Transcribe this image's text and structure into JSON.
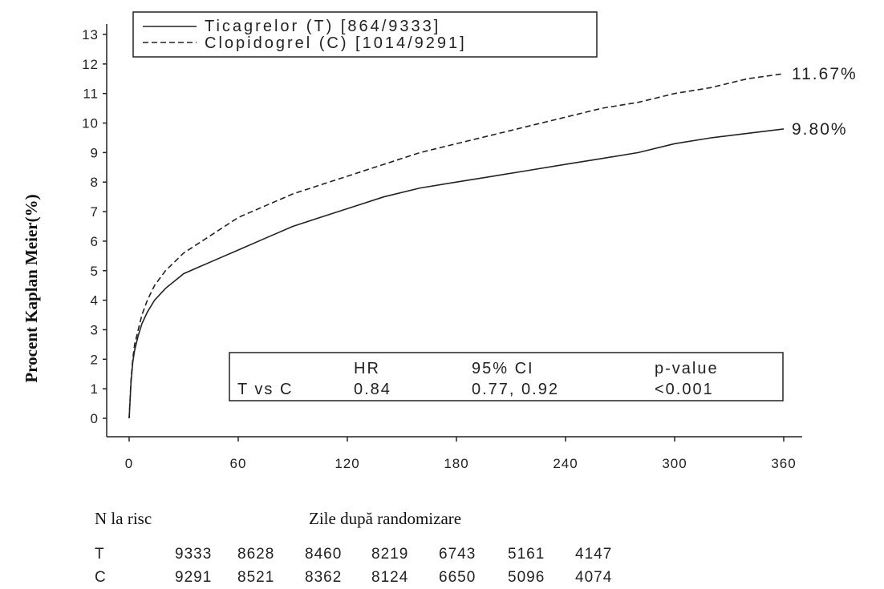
{
  "chart_data": {
    "type": "line",
    "xlabel": "Zile după randomizare",
    "ylabel": "Procent Kaplan Meier(%)",
    "xlim": [
      0,
      360
    ],
    "ylim": [
      0,
      13
    ],
    "x_ticks": [
      0,
      60,
      120,
      180,
      240,
      300,
      360
    ],
    "y_ticks": [
      0,
      1,
      2,
      3,
      4,
      5,
      6,
      7,
      8,
      9,
      10,
      11,
      12,
      13
    ],
    "grid": false,
    "legend_position": "top-left",
    "series": [
      {
        "name": "Ticagrelor (T) [864/9333]",
        "style": "solid",
        "end_label": "9.80%",
        "x": [
          0,
          1,
          2,
          3,
          5,
          7,
          10,
          14,
          20,
          30,
          45,
          60,
          75,
          90,
          105,
          120,
          140,
          160,
          180,
          200,
          220,
          240,
          260,
          280,
          300,
          320,
          340,
          360
        ],
        "y": [
          0,
          1.2,
          1.9,
          2.3,
          2.8,
          3.2,
          3.6,
          4.0,
          4.4,
          4.9,
          5.3,
          5.7,
          6.1,
          6.5,
          6.8,
          7.1,
          7.5,
          7.8,
          8.0,
          8.2,
          8.4,
          8.6,
          8.8,
          9.0,
          9.3,
          9.5,
          9.65,
          9.8
        ]
      },
      {
        "name": "Clopidogrel (C) [1014/9291]",
        "style": "dashed",
        "end_label": "11.67%",
        "x": [
          0,
          1,
          2,
          3,
          5,
          7,
          10,
          14,
          20,
          30,
          45,
          60,
          75,
          90,
          105,
          120,
          140,
          160,
          180,
          200,
          220,
          240,
          260,
          280,
          300,
          320,
          340,
          360
        ],
        "y": [
          0,
          1.3,
          2.0,
          2.5,
          3.0,
          3.5,
          4.0,
          4.5,
          5.0,
          5.6,
          6.2,
          6.8,
          7.2,
          7.6,
          7.9,
          8.2,
          8.6,
          9.0,
          9.3,
          9.6,
          9.9,
          10.2,
          10.5,
          10.7,
          11.0,
          11.2,
          11.5,
          11.67
        ]
      }
    ],
    "stats_table": {
      "row_label": "T vs C",
      "headers": [
        "HR",
        "95% CI",
        "p-value"
      ],
      "values": [
        "0.84",
        "0.77, 0.92",
        "<0.001"
      ]
    },
    "risk_table": {
      "title": "N la risc",
      "rows": [
        {
          "label": "T",
          "values": [
            "9333",
            "8628",
            "8460",
            "8219",
            "6743",
            "5161",
            "4147"
          ]
        },
        {
          "label": "C",
          "values": [
            "9291",
            "8521",
            "8362",
            "8124",
            "6650",
            "5096",
            "4074"
          ]
        }
      ]
    }
  }
}
